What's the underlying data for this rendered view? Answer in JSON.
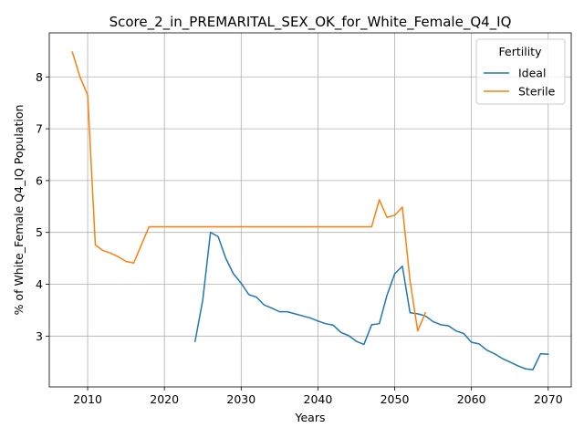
{
  "chart_data": {
    "type": "line",
    "title": "Score_2_in_PREMARITAL_SEX_OK_for_White_Female_Q4_IQ",
    "xlabel": "Years",
    "ylabel": "% of White_Female Q4_IQ Population",
    "xlim": [
      2005,
      2073
    ],
    "ylim": [
      2.02,
      8.85
    ],
    "xticks": [
      2010,
      2020,
      2030,
      2040,
      2050,
      2060,
      2070
    ],
    "yticks": [
      3,
      4,
      5,
      6,
      7,
      8
    ],
    "grid": true,
    "legend": {
      "title": "Fertility",
      "placement": "top-right"
    },
    "series": [
      {
        "name": "Ideal",
        "color": "#1f77b4",
        "x": [
          2024,
          2025,
          2026,
          2027,
          2028,
          2029,
          2030,
          2031,
          2032,
          2033,
          2034,
          2035,
          2036,
          2037,
          2038,
          2039,
          2040,
          2041,
          2042,
          2043,
          2044,
          2045,
          2046,
          2047,
          2048,
          2049,
          2050,
          2051,
          2052,
          2053,
          2054,
          2055,
          2056,
          2057,
          2058,
          2059,
          2060,
          2061,
          2062,
          2063,
          2064,
          2065,
          2066,
          2067,
          2068,
          2069,
          2070
        ],
        "y": [
          2.9,
          3.7,
          5.0,
          4.92,
          4.5,
          4.2,
          4.02,
          3.8,
          3.75,
          3.6,
          3.54,
          3.47,
          3.47,
          3.43,
          3.39,
          3.35,
          3.29,
          3.24,
          3.21,
          3.07,
          3.01,
          2.9,
          2.84,
          3.22,
          3.24,
          3.79,
          4.2,
          4.35,
          3.45,
          3.43,
          3.39,
          3.28,
          3.22,
          3.2,
          3.1,
          3.05,
          2.88,
          2.85,
          2.73,
          2.66,
          2.57,
          2.5,
          2.43,
          2.37,
          2.35,
          2.66,
          2.65
        ]
      },
      {
        "name": "Sterile",
        "color": "#ff7f0e",
        "x": [
          2008,
          2009,
          2010,
          2011,
          2012,
          2013,
          2014,
          2015,
          2016,
          2017,
          2018,
          2019,
          2020,
          2025,
          2030,
          2035,
          2040,
          2045,
          2046,
          2047,
          2048,
          2049,
          2050,
          2051,
          2052,
          2053,
          2054
        ],
        "y": [
          8.48,
          8.0,
          7.65,
          4.76,
          4.65,
          4.6,
          4.53,
          4.44,
          4.41,
          4.76,
          5.11,
          5.11,
          5.11,
          5.11,
          5.11,
          5.11,
          5.11,
          5.11,
          5.11,
          5.11,
          5.63,
          5.29,
          5.33,
          5.49,
          4.07,
          3.1,
          3.45
        ]
      }
    ]
  }
}
